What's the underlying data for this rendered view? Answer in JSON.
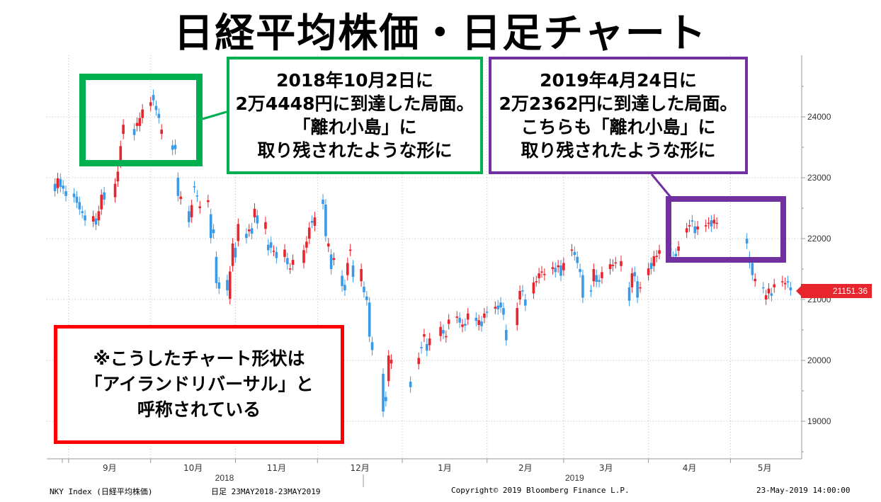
{
  "title": "日経平均株価・日足チャート",
  "callouts": {
    "green": [
      "2018年10月2日に",
      "2万4448円に到達した局面。",
      "「離れ小島」に",
      "取り残されたような形に"
    ],
    "purple": [
      "2019年4月24日に",
      "2万2362円に到達した局面。",
      "こちらも「離れ小島」に",
      "取り残されたような形に"
    ],
    "red": [
      "※こうしたチャート形状は",
      "「アイランドリバーサル」と",
      "呼称されている"
    ]
  },
  "footer": {
    "index": "NKY Index (日経平均株価)",
    "range": "日足 23MAY2018-23MAY2019",
    "copyright": "Copyright© 2019 Bloomberg Finance L.P.",
    "date": "23-May-2019 14:00:00"
  },
  "last_price_label": "21151.36",
  "colors": {
    "up": "#e8242d",
    "down": "#3b9ae8",
    "green": "#00b050",
    "purple": "#7030a0",
    "red": "#ff0000"
  },
  "chart_data": {
    "type": "candlestick",
    "ylim": [
      18500,
      24700
    ],
    "yticks": [
      19000,
      20000,
      21000,
      22000,
      23000,
      24000
    ],
    "x_months": [
      "9月",
      "10月",
      "11月",
      "12月",
      "1月",
      "2月",
      "3月",
      "4月",
      "5月"
    ],
    "x_years": [
      "2018",
      "2019"
    ],
    "grid": true,
    "candles": [
      {
        "date": "2018-08-27",
        "o": 22900,
        "c": 22780
      },
      {
        "date": "2018-08-28",
        "o": 22830,
        "c": 22990
      },
      {
        "date": "2018-08-29",
        "o": 22980,
        "c": 22850
      },
      {
        "date": "2018-08-30",
        "o": 22870,
        "c": 22820
      },
      {
        "date": "2018-08-31",
        "o": 22780,
        "c": 22700
      },
      {
        "date": "2018-09-03",
        "o": 22740,
        "c": 22680
      },
      {
        "date": "2018-09-04",
        "o": 22690,
        "c": 22590
      },
      {
        "date": "2018-09-05",
        "o": 22600,
        "c": 22480
      },
      {
        "date": "2018-09-06",
        "o": 22450,
        "c": 22420
      },
      {
        "date": "2018-09-07",
        "o": 22380,
        "c": 22300
      },
      {
        "date": "2018-09-10",
        "o": 22280,
        "c": 22370
      },
      {
        "date": "2018-09-11",
        "o": 22330,
        "c": 22230
      },
      {
        "date": "2018-09-12",
        "o": 22300,
        "c": 22450
      },
      {
        "date": "2018-09-13",
        "o": 22480,
        "c": 22720
      },
      {
        "date": "2018-09-14",
        "o": 22760,
        "c": 22640
      },
      {
        "date": "2018-09-18",
        "o": 22680,
        "c": 22900
      },
      {
        "date": "2018-09-19",
        "o": 22940,
        "c": 23100
      },
      {
        "date": "2018-09-20",
        "o": 23250,
        "c": 23520
      },
      {
        "date": "2018-09-21",
        "o": 23720,
        "c": 23870
      },
      {
        "date": "2018-09-25",
        "o": 23800,
        "c": 23700
      },
      {
        "date": "2018-09-26",
        "o": 23850,
        "c": 23900
      },
      {
        "date": "2018-09-27",
        "o": 23850,
        "c": 23980
      },
      {
        "date": "2018-09-28",
        "o": 23980,
        "c": 24120
      },
      {
        "date": "2018-10-01",
        "o": 24180,
        "c": 24240
      },
      {
        "date": "2018-10-02",
        "o": 24360,
        "c": 24270
      },
      {
        "date": "2018-10-03",
        "o": 24180,
        "c": 24110
      },
      {
        "date": "2018-10-04",
        "o": 24050,
        "c": 23980
      },
      {
        "date": "2018-10-05",
        "o": 23720,
        "c": 23790
      },
      {
        "date": "2018-10-09",
        "o": 23530,
        "c": 23460
      },
      {
        "date": "2018-10-10",
        "o": 23540,
        "c": 23470
      },
      {
        "date": "2018-10-11",
        "o": 23000,
        "c": 22700
      },
      {
        "date": "2018-10-12",
        "o": 22650,
        "c": 22690
      },
      {
        "date": "2018-10-15",
        "o": 22450,
        "c": 22270
      },
      {
        "date": "2018-10-16",
        "o": 22350,
        "c": 22550
      },
      {
        "date": "2018-10-17",
        "o": 22860,
        "c": 22840
      },
      {
        "date": "2018-10-18",
        "o": 22710,
        "c": 22690
      },
      {
        "date": "2018-10-19",
        "o": 22500,
        "c": 22530
      },
      {
        "date": "2018-10-22",
        "o": 22600,
        "c": 22630
      },
      {
        "date": "2018-10-23",
        "o": 22400,
        "c": 22010
      },
      {
        "date": "2018-10-24",
        "o": 22150,
        "c": 22090
      },
      {
        "date": "2018-10-25",
        "o": 21700,
        "c": 21270
      },
      {
        "date": "2018-10-26",
        "o": 21280,
        "c": 21180
      },
      {
        "date": "2018-10-29",
        "o": 21320,
        "c": 21150
      },
      {
        "date": "2018-10-30",
        "o": 21010,
        "c": 21460
      },
      {
        "date": "2018-10-31",
        "o": 21550,
        "c": 21920
      },
      {
        "date": "2018-11-01",
        "o": 21850,
        "c": 21690
      },
      {
        "date": "2018-11-02",
        "o": 21960,
        "c": 22240
      },
      {
        "date": "2018-11-05",
        "o": 22080,
        "c": 22010
      },
      {
        "date": "2018-11-06",
        "o": 22120,
        "c": 22150
      },
      {
        "date": "2018-11-07",
        "o": 22170,
        "c": 22080
      },
      {
        "date": "2018-11-08",
        "o": 22350,
        "c": 22490
      },
      {
        "date": "2018-11-09",
        "o": 22380,
        "c": 22250
      },
      {
        "date": "2018-11-12",
        "o": 22160,
        "c": 22270
      },
      {
        "date": "2018-11-13",
        "o": 21900,
        "c": 21810
      },
      {
        "date": "2018-11-14",
        "o": 21940,
        "c": 21850
      },
      {
        "date": "2018-11-15",
        "o": 21800,
        "c": 21800
      },
      {
        "date": "2018-11-16",
        "o": 21780,
        "c": 21680
      },
      {
        "date": "2018-11-19",
        "o": 21700,
        "c": 21820
      },
      {
        "date": "2018-11-20",
        "o": 21680,
        "c": 21580
      },
      {
        "date": "2018-11-21",
        "o": 21510,
        "c": 21510
      },
      {
        "date": "2018-11-22",
        "o": 21570,
        "c": 21650
      },
      {
        "date": "2018-11-26",
        "o": 21600,
        "c": 21810
      },
      {
        "date": "2018-11-27",
        "o": 21850,
        "c": 21950
      },
      {
        "date": "2018-11-28",
        "o": 22000,
        "c": 22180
      },
      {
        "date": "2018-11-29",
        "o": 22290,
        "c": 22260
      },
      {
        "date": "2018-11-30",
        "o": 22210,
        "c": 22350
      },
      {
        "date": "2018-12-03",
        "o": 22640,
        "c": 22570
      },
      {
        "date": "2018-12-04",
        "o": 22560,
        "c": 22040
      },
      {
        "date": "2018-12-05",
        "o": 21870,
        "c": 21920
      },
      {
        "date": "2018-12-06",
        "o": 21740,
        "c": 21500
      },
      {
        "date": "2018-12-07",
        "o": 21650,
        "c": 21680
      },
      {
        "date": "2018-12-10",
        "o": 21390,
        "c": 21220
      },
      {
        "date": "2018-12-11",
        "o": 21240,
        "c": 21150
      },
      {
        "date": "2018-12-12",
        "o": 21400,
        "c": 21600
      },
      {
        "date": "2018-12-13",
        "o": 21800,
        "c": 21820
      },
      {
        "date": "2018-12-14",
        "o": 21560,
        "c": 21370
      },
      {
        "date": "2018-12-17",
        "o": 21300,
        "c": 21500
      },
      {
        "date": "2018-12-18",
        "o": 21210,
        "c": 21120
      },
      {
        "date": "2018-12-19",
        "o": 21050,
        "c": 20990
      },
      {
        "date": "2018-12-20",
        "o": 20950,
        "c": 20390
      },
      {
        "date": "2018-12-21",
        "o": 20300,
        "c": 20170
      },
      {
        "date": "2018-12-25",
        "o": 19780,
        "c": 19160
      },
      {
        "date": "2018-12-26",
        "o": 19400,
        "c": 19330
      },
      {
        "date": "2018-12-27",
        "o": 19660,
        "c": 20080
      },
      {
        "date": "2018-12-28",
        "o": 19950,
        "c": 20010
      },
      {
        "date": "2019-01-04",
        "o": 19650,
        "c": 19560
      },
      {
        "date": "2019-01-07",
        "o": 19940,
        "c": 20040
      },
      {
        "date": "2019-01-08",
        "o": 20220,
        "c": 20200
      },
      {
        "date": "2019-01-09",
        "o": 20390,
        "c": 20430
      },
      {
        "date": "2019-01-10",
        "o": 20270,
        "c": 20160
      },
      {
        "date": "2019-01-11",
        "o": 20250,
        "c": 20360
      },
      {
        "date": "2019-01-15",
        "o": 20400,
        "c": 20550
      },
      {
        "date": "2019-01-16",
        "o": 20500,
        "c": 20440
      },
      {
        "date": "2019-01-17",
        "o": 20380,
        "c": 20400
      },
      {
        "date": "2019-01-18",
        "o": 20600,
        "c": 20670
      },
      {
        "date": "2019-01-21",
        "o": 20700,
        "c": 20720
      },
      {
        "date": "2019-01-22",
        "o": 20700,
        "c": 20620
      },
      {
        "date": "2019-01-23",
        "o": 20550,
        "c": 20590
      },
      {
        "date": "2019-01-24",
        "o": 20600,
        "c": 20570
      },
      {
        "date": "2019-01-25",
        "o": 20670,
        "c": 20770
      },
      {
        "date": "2019-01-28",
        "o": 20700,
        "c": 20650
      },
      {
        "date": "2019-01-29",
        "o": 20580,
        "c": 20660
      },
      {
        "date": "2019-01-30",
        "o": 20640,
        "c": 20560
      },
      {
        "date": "2019-01-31",
        "o": 20700,
        "c": 20770
      },
      {
        "date": "2019-02-01",
        "o": 20800,
        "c": 20790
      },
      {
        "date": "2019-02-04",
        "o": 20850,
        "c": 20880
      },
      {
        "date": "2019-02-05",
        "o": 20900,
        "c": 20840
      },
      {
        "date": "2019-02-06",
        "o": 20950,
        "c": 20870
      },
      {
        "date": "2019-02-07",
        "o": 20860,
        "c": 20750
      },
      {
        "date": "2019-02-08",
        "o": 20500,
        "c": 20330
      },
      {
        "date": "2019-02-12",
        "o": 20580,
        "c": 20860
      },
      {
        "date": "2019-02-13",
        "o": 21000,
        "c": 21140
      },
      {
        "date": "2019-02-14",
        "o": 21150,
        "c": 21140
      },
      {
        "date": "2019-02-15",
        "o": 21000,
        "c": 20900
      },
      {
        "date": "2019-02-18",
        "o": 21100,
        "c": 21280
      },
      {
        "date": "2019-02-19",
        "o": 21300,
        "c": 21300
      },
      {
        "date": "2019-02-20",
        "o": 21350,
        "c": 21430
      },
      {
        "date": "2019-02-21",
        "o": 21450,
        "c": 21460
      },
      {
        "date": "2019-02-22",
        "o": 21400,
        "c": 21420
      },
      {
        "date": "2019-02-25",
        "o": 21500,
        "c": 21530
      },
      {
        "date": "2019-02-26",
        "o": 21520,
        "c": 21450
      },
      {
        "date": "2019-02-27",
        "o": 21530,
        "c": 21560
      },
      {
        "date": "2019-02-28",
        "o": 21560,
        "c": 21390
      },
      {
        "date": "2019-03-01",
        "o": 21480,
        "c": 21600
      },
      {
        "date": "2019-03-04",
        "o": 21800,
        "c": 21820
      },
      {
        "date": "2019-03-05",
        "o": 21780,
        "c": 21730
      },
      {
        "date": "2019-03-06",
        "o": 21700,
        "c": 21600
      },
      {
        "date": "2019-03-07",
        "o": 21500,
        "c": 21450
      },
      {
        "date": "2019-03-08",
        "o": 21400,
        "c": 21030
      },
      {
        "date": "2019-03-11",
        "o": 21150,
        "c": 21130
      },
      {
        "date": "2019-03-12",
        "o": 21300,
        "c": 21500
      },
      {
        "date": "2019-03-13",
        "o": 21400,
        "c": 21290
      },
      {
        "date": "2019-03-14",
        "o": 21320,
        "c": 21290
      },
      {
        "date": "2019-03-15",
        "o": 21350,
        "c": 21450
      },
      {
        "date": "2019-03-18",
        "o": 21500,
        "c": 21580
      },
      {
        "date": "2019-03-19",
        "o": 21550,
        "c": 21570
      },
      {
        "date": "2019-03-20",
        "o": 21600,
        "c": 21610
      },
      {
        "date": "2019-03-22",
        "o": 21550,
        "c": 21630
      },
      {
        "date": "2019-03-25",
        "o": 21200,
        "c": 20980
      },
      {
        "date": "2019-03-26",
        "o": 21200,
        "c": 21430
      },
      {
        "date": "2019-03-27",
        "o": 21450,
        "c": 21380
      },
      {
        "date": "2019-03-28",
        "o": 21300,
        "c": 21030
      },
      {
        "date": "2019-03-29",
        "o": 21200,
        "c": 21200
      },
      {
        "date": "2019-04-01",
        "o": 21400,
        "c": 21510
      },
      {
        "date": "2019-04-02",
        "o": 21600,
        "c": 21500
      },
      {
        "date": "2019-04-03",
        "o": 21550,
        "c": 21710
      },
      {
        "date": "2019-04-04",
        "o": 21700,
        "c": 21720
      },
      {
        "date": "2019-04-05",
        "o": 21750,
        "c": 21810
      },
      {
        "date": "2019-04-08",
        "o": 21800,
        "c": 21760
      },
      {
        "date": "2019-04-09",
        "o": 21850,
        "c": 21800
      },
      {
        "date": "2019-04-10",
        "o": 21700,
        "c": 21690
      },
      {
        "date": "2019-04-11",
        "o": 21750,
        "c": 21710
      },
      {
        "date": "2019-04-12",
        "o": 21800,
        "c": 21870
      },
      {
        "date": "2019-04-15",
        "o": 22100,
        "c": 22170
      },
      {
        "date": "2019-04-16",
        "o": 22200,
        "c": 22220
      },
      {
        "date": "2019-04-17",
        "o": 22300,
        "c": 22280
      },
      {
        "date": "2019-04-18",
        "o": 22200,
        "c": 22090
      },
      {
        "date": "2019-04-19",
        "o": 22150,
        "c": 22200
      },
      {
        "date": "2019-04-22",
        "o": 22200,
        "c": 22220
      },
      {
        "date": "2019-04-23",
        "o": 22250,
        "c": 22260
      },
      {
        "date": "2019-04-24",
        "o": 22300,
        "c": 22200
      },
      {
        "date": "2019-04-25",
        "o": 22250,
        "c": 22310
      },
      {
        "date": "2019-04-26",
        "o": 22250,
        "c": 22260
      },
      {
        "date": "2019-05-07",
        "o": 22000,
        "c": 21920
      },
      {
        "date": "2019-05-08",
        "o": 21700,
        "c": 21600
      },
      {
        "date": "2019-05-09",
        "o": 21600,
        "c": 21400
      },
      {
        "date": "2019-05-10",
        "o": 21300,
        "c": 21340
      },
      {
        "date": "2019-05-13",
        "o": 21200,
        "c": 21190
      },
      {
        "date": "2019-05-14",
        "o": 21000,
        "c": 21070
      },
      {
        "date": "2019-05-15",
        "o": 21100,
        "c": 21180
      },
      {
        "date": "2019-05-16",
        "o": 21100,
        "c": 21060
      },
      {
        "date": "2019-05-17",
        "o": 21200,
        "c": 21250
      },
      {
        "date": "2019-05-20",
        "o": 21300,
        "c": 21300
      },
      {
        "date": "2019-05-21",
        "o": 21250,
        "c": 21270
      },
      {
        "date": "2019-05-22",
        "o": 21300,
        "c": 21280
      },
      {
        "date": "2019-05-23",
        "o": 21200,
        "c": 21151
      }
    ]
  }
}
